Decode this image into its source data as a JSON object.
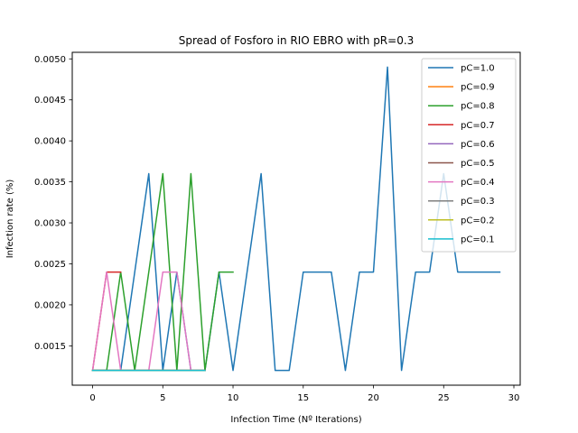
{
  "chart_data": {
    "type": "line",
    "title": "Spread of Fosforo in RIO EBRO with pR=0.3",
    "xlabel": "Infection Time (Nº Iterations)",
    "ylabel": "Infection rate (%)",
    "xlim": [
      -1.45,
      30.45
    ],
    "ylim": [
      0.00102,
      0.00508
    ],
    "x_ticks": [
      0,
      5,
      10,
      15,
      20,
      25,
      30
    ],
    "y_ticks": [
      0.0015,
      0.002,
      0.0025,
      0.003,
      0.0035,
      0.004,
      0.0045,
      0.005
    ],
    "y_tick_labels": [
      "0.0015",
      "0.0020",
      "0.0025",
      "0.0030",
      "0.0035",
      "0.0040",
      "0.0045",
      "0.0050"
    ],
    "legend_position": "top-right",
    "grid": false,
    "series": [
      {
        "name": "pC=1.0",
        "color": "#1f77b4",
        "x": [
          0,
          1,
          2,
          3,
          4,
          5,
          6,
          7,
          8,
          9,
          10,
          11,
          12,
          13,
          14,
          15,
          16,
          17,
          18,
          19,
          20,
          21,
          22,
          23,
          24,
          25,
          26,
          27,
          28,
          29
        ],
        "y": [
          0.0012,
          0.0012,
          0.0012,
          0.0024,
          0.0036,
          0.0012,
          0.0024,
          0.0012,
          0.0012,
          0.0024,
          0.0012,
          0.0024,
          0.0036,
          0.0012,
          0.0012,
          0.0024,
          0.0024,
          0.0024,
          0.0012,
          0.0024,
          0.0024,
          0.0049,
          0.0012,
          0.0024,
          0.0024,
          0.0036,
          0.0024,
          0.0024,
          0.0024,
          0.0024
        ]
      },
      {
        "name": "pC=0.9",
        "color": "#ff7f0e",
        "x": [
          0,
          1,
          2,
          3,
          4,
          5,
          6,
          7,
          8
        ],
        "y": [
          0.0012,
          0.0012,
          0.0012,
          0.0012,
          0.0012,
          0.0012,
          0.0012,
          0.0012,
          0.0012
        ]
      },
      {
        "name": "pC=0.8",
        "color": "#2ca02c",
        "x": [
          0,
          1,
          2,
          3,
          4,
          5,
          6,
          7,
          8,
          9,
          10
        ],
        "y": [
          0.0012,
          0.0012,
          0.0024,
          0.0012,
          0.0024,
          0.0036,
          0.0012,
          0.0036,
          0.0012,
          0.0024,
          0.0024
        ]
      },
      {
        "name": "pC=0.7",
        "color": "#d62728",
        "x": [
          0,
          1,
          2
        ],
        "y": [
          0.0012,
          0.0024,
          0.0024
        ]
      },
      {
        "name": "pC=0.6",
        "color": "#9467bd",
        "x": [
          0,
          1,
          2,
          3,
          4,
          5,
          6,
          7,
          8
        ],
        "y": [
          0.0012,
          0.0012,
          0.0012,
          0.0012,
          0.0012,
          0.0012,
          0.0012,
          0.0012,
          0.0012
        ]
      },
      {
        "name": "pC=0.5",
        "color": "#8c564b",
        "x": [
          0,
          1,
          2,
          3,
          4,
          5,
          6,
          7,
          8
        ],
        "y": [
          0.0012,
          0.0012,
          0.0012,
          0.0012,
          0.0012,
          0.0012,
          0.0012,
          0.0012,
          0.0012
        ]
      },
      {
        "name": "pC=0.4",
        "color": "#e377c2",
        "x": [
          0,
          1,
          2,
          3,
          4,
          5,
          6,
          7,
          8
        ],
        "y": [
          0.0012,
          0.0024,
          0.0012,
          0.0012,
          0.0012,
          0.0024,
          0.0024,
          0.0012,
          0.0012
        ]
      },
      {
        "name": "pC=0.3",
        "color": "#7f7f7f",
        "x": [
          0,
          1,
          2,
          3,
          4,
          5,
          6,
          7,
          8
        ],
        "y": [
          0.0012,
          0.0012,
          0.0012,
          0.0012,
          0.0012,
          0.0012,
          0.0012,
          0.0012,
          0.0012
        ]
      },
      {
        "name": "pC=0.2",
        "color": "#bcbd22",
        "x": [
          0,
          1,
          2,
          3,
          4,
          5,
          6,
          7,
          8
        ],
        "y": [
          0.0012,
          0.0012,
          0.0012,
          0.0012,
          0.0012,
          0.0012,
          0.0012,
          0.0012,
          0.0012
        ]
      },
      {
        "name": "pC=0.1",
        "color": "#17becf",
        "x": [
          0,
          1,
          2,
          3,
          4,
          5,
          6,
          7,
          8
        ],
        "y": [
          0.0012,
          0.0012,
          0.0012,
          0.0012,
          0.0012,
          0.0012,
          0.0012,
          0.0012,
          0.0012
        ]
      }
    ]
  }
}
